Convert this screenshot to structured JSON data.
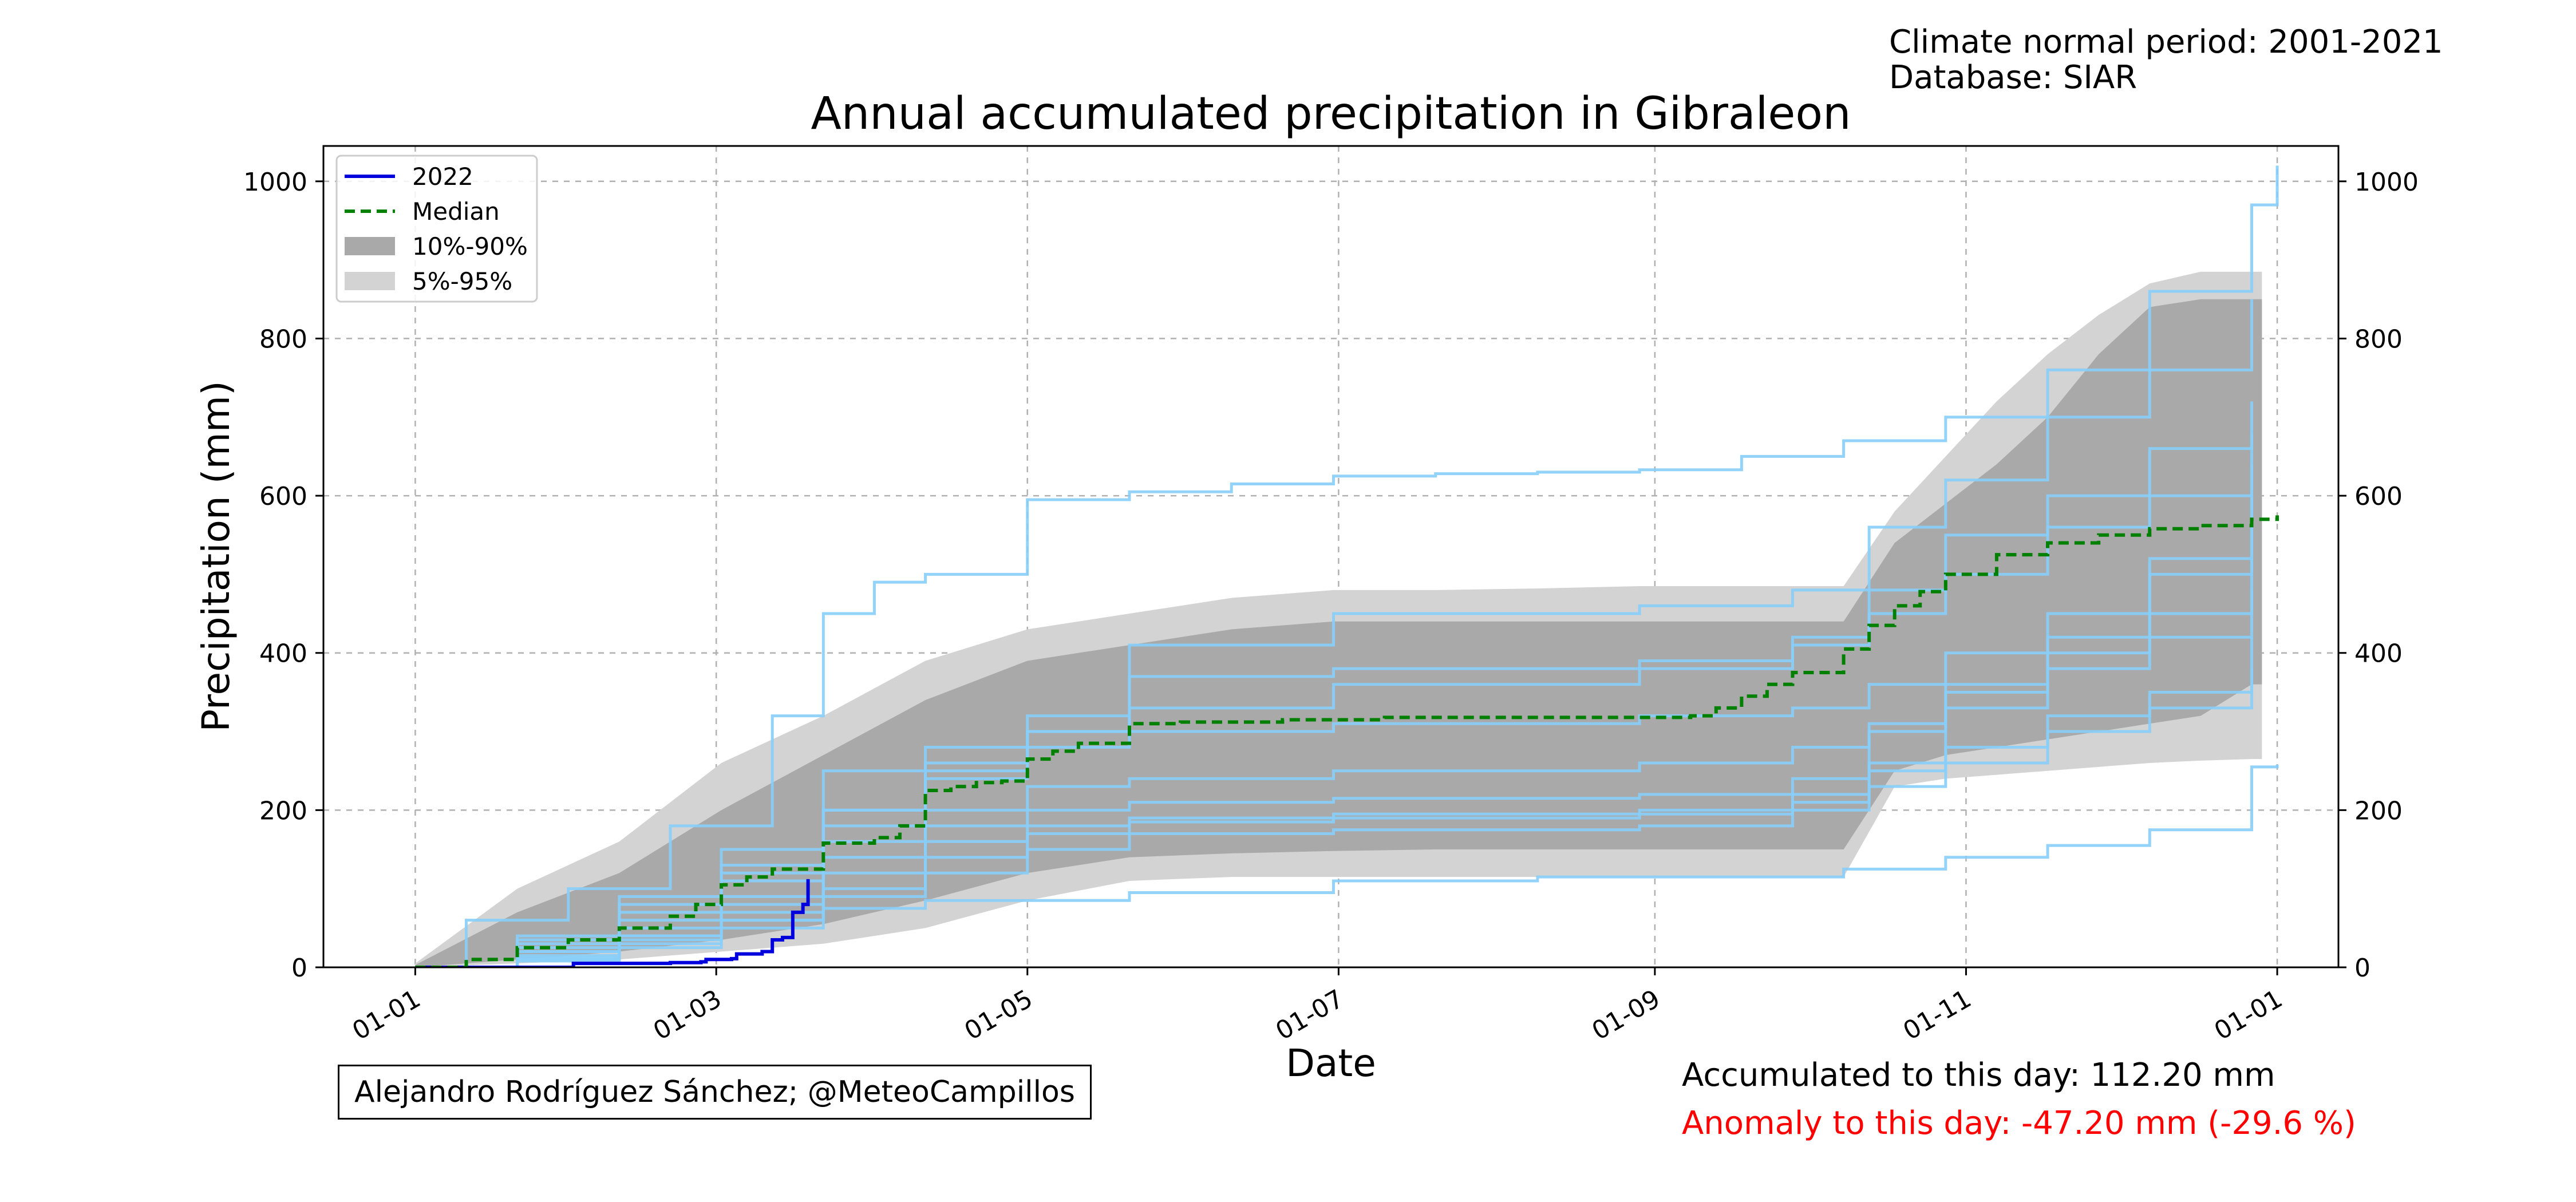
{
  "header": {
    "normal_period": "Climate normal period: 2001-2021",
    "database": "Database: SIAR"
  },
  "footer": {
    "credit": "Alejandro Rodríguez Sánchez; @MeteoCampillos",
    "accumulated": "Accumulated to this day: 112.20 mm",
    "anomaly": "Anomaly to this day: -47.20 mm (-29.6 %)"
  },
  "colors": {
    "current": "#0000dd",
    "median": "#008000",
    "band_10_90": "#a9a9a9",
    "band_5_95": "#d3d3d3",
    "historical": "#87cefa",
    "anomaly_text": "#ff0000"
  },
  "chart_data": {
    "type": "line",
    "title": "Annual accumulated precipitation in Gibraleon",
    "xlabel": "Date",
    "ylabel": "Precipitation (mm)",
    "x_ticks": [
      "01-01",
      "01-03",
      "01-05",
      "01-07",
      "01-09",
      "01-11",
      "01-01"
    ],
    "x_tick_days": [
      0,
      59,
      120,
      181,
      243,
      304,
      365
    ],
    "xlim": [
      -18,
      377
    ],
    "ylim": [
      0,
      1045
    ],
    "y_ticks": [
      0,
      200,
      400,
      600,
      800,
      1000
    ],
    "grid": true,
    "right_axis_ticks": true,
    "legend_position": "top-left",
    "legend": [
      "2022",
      "Median",
      "10%-90%",
      "5%-95%"
    ],
    "series": [
      {
        "name": "2022",
        "style": "solid",
        "x": [
          0,
          15,
          30,
          31,
          50,
          56,
          57,
          62,
          63,
          68,
          70,
          72,
          74,
          76,
          77
        ],
        "y": [
          0,
          0,
          0,
          5,
          6,
          7,
          10,
          11,
          17,
          20,
          35,
          38,
          70,
          80,
          112.2
        ]
      },
      {
        "name": "Median",
        "style": "dashed",
        "x": [
          0,
          10,
          20,
          30,
          40,
          50,
          55,
          60,
          65,
          70,
          80,
          90,
          95,
          100,
          105,
          110,
          115,
          120,
          125,
          130,
          140,
          150,
          160,
          170,
          180,
          190,
          200,
          210,
          220,
          230,
          240,
          245,
          250,
          255,
          260,
          265,
          270,
          280,
          285,
          290,
          295,
          300,
          310,
          320,
          330,
          340,
          350,
          360,
          365
        ],
        "y": [
          0,
          10,
          25,
          35,
          50,
          65,
          80,
          105,
          115,
          125,
          158,
          165,
          180,
          225,
          230,
          235,
          237,
          265,
          275,
          285,
          310,
          312,
          312,
          315,
          315,
          318,
          318,
          318,
          318,
          318,
          318,
          318,
          320,
          330,
          345,
          360,
          375,
          405,
          435,
          460,
          478,
          500,
          525,
          540,
          550,
          558,
          562,
          570,
          575
        ]
      }
    ],
    "bands": [
      {
        "name": "5%-95%",
        "x": [
          0,
          20,
          40,
          60,
          80,
          100,
          120,
          140,
          160,
          180,
          200,
          220,
          240,
          260,
          280,
          290,
          300,
          310,
          320,
          330,
          340,
          350,
          360,
          362
        ],
        "lower": [
          0,
          5,
          10,
          20,
          30,
          50,
          85,
          110,
          115,
          115,
          115,
          115,
          115,
          115,
          115,
          230,
          240,
          245,
          250,
          255,
          260,
          263,
          265,
          265
        ],
        "upper": [
          5,
          100,
          160,
          260,
          320,
          390,
          430,
          450,
          470,
          480,
          480,
          482,
          485,
          485,
          485,
          580,
          650,
          720,
          780,
          830,
          870,
          885,
          885,
          885
        ]
      },
      {
        "name": "10%-90%",
        "x": [
          0,
          20,
          40,
          60,
          80,
          100,
          120,
          140,
          160,
          180,
          200,
          220,
          240,
          260,
          280,
          290,
          300,
          310,
          320,
          330,
          340,
          350,
          360,
          362
        ],
        "lower": [
          0,
          10,
          20,
          35,
          55,
          85,
          120,
          140,
          145,
          148,
          150,
          150,
          150,
          150,
          150,
          250,
          270,
          280,
          290,
          300,
          310,
          320,
          360,
          360
        ],
        "upper": [
          3,
          70,
          120,
          200,
          270,
          340,
          390,
          410,
          430,
          440,
          440,
          440,
          440,
          440,
          440,
          540,
          590,
          640,
          700,
          780,
          840,
          850,
          850,
          850
        ]
      }
    ],
    "historical_years": [
      {
        "x": [
          0,
          10,
          30,
          50,
          70,
          80,
          90,
          100,
          120,
          140,
          160,
          180,
          200,
          220,
          240,
          260,
          280,
          300,
          320,
          340,
          360,
          365
        ],
        "y": [
          0,
          60,
          100,
          180,
          320,
          450,
          490,
          500,
          595,
          605,
          615,
          625,
          628,
          630,
          633,
          650,
          670,
          700,
          760,
          860,
          970,
          1020
        ]
      },
      {
        "x": [
          0,
          20,
          40,
          60,
          80,
          100,
          140,
          180,
          220,
          260,
          280,
          300,
          320,
          340,
          360,
          365
        ],
        "y": [
          0,
          20,
          40,
          60,
          75,
          85,
          95,
          110,
          115,
          115,
          125,
          140,
          155,
          175,
          255,
          258
        ]
      },
      {
        "x": [
          0,
          20,
          40,
          60,
          80,
          100,
          120,
          140,
          180,
          240,
          270,
          285,
          300,
          320,
          340,
          360
        ],
        "y": [
          0,
          40,
          80,
          150,
          250,
          280,
          300,
          410,
          450,
          460,
          480,
          560,
          620,
          700,
          760,
          850
        ]
      },
      {
        "x": [
          0,
          20,
          40,
          60,
          80,
          100,
          120,
          140,
          180,
          240,
          270,
          285,
          300,
          320,
          340,
          360
        ],
        "y": [
          0,
          30,
          60,
          120,
          200,
          240,
          300,
          330,
          360,
          380,
          410,
          450,
          500,
          560,
          600,
          680
        ]
      },
      {
        "x": [
          0,
          20,
          40,
          60,
          80,
          100,
          120,
          140,
          180,
          240,
          270,
          285,
          300,
          320,
          340,
          360
        ],
        "y": [
          0,
          20,
          50,
          90,
          160,
          200,
          230,
          240,
          250,
          260,
          280,
          310,
          360,
          400,
          450,
          520
        ]
      },
      {
        "x": [
          0,
          20,
          40,
          60,
          80,
          100,
          120,
          140,
          180,
          240,
          270,
          285,
          300,
          320,
          340,
          360
        ],
        "y": [
          0,
          15,
          40,
          80,
          120,
          160,
          180,
          190,
          195,
          200,
          220,
          250,
          280,
          320,
          350,
          420
        ]
      },
      {
        "x": [
          0,
          20,
          40,
          60,
          80,
          100,
          120,
          140,
          180,
          240,
          270,
          285,
          300,
          320,
          340,
          360
        ],
        "y": [
          0,
          10,
          30,
          60,
          90,
          120,
          150,
          170,
          175,
          180,
          200,
          230,
          260,
          300,
          330,
          380
        ]
      },
      {
        "x": [
          0,
          20,
          40,
          60,
          80,
          100,
          120,
          140,
          180,
          240,
          270,
          285,
          300,
          320,
          340,
          360
        ],
        "y": [
          0,
          25,
          70,
          110,
          180,
          260,
          320,
          370,
          380,
          390,
          420,
          480,
          550,
          600,
          660,
          720
        ]
      },
      {
        "x": [
          0,
          20,
          40,
          60,
          80,
          100,
          120,
          140,
          180,
          240,
          270,
          285,
          300,
          320,
          340,
          360
        ],
        "y": [
          0,
          12,
          35,
          70,
          140,
          180,
          200,
          210,
          215,
          220,
          240,
          300,
          350,
          420,
          500,
          600
        ]
      },
      {
        "x": [
          0,
          20,
          40,
          60,
          80,
          100,
          120,
          140,
          180,
          240,
          270,
          285,
          300,
          320,
          340,
          360
        ],
        "y": [
          0,
          35,
          90,
          130,
          200,
          250,
          280,
          300,
          310,
          320,
          330,
          360,
          400,
          450,
          520,
          640
        ]
      },
      {
        "x": [
          0,
          20,
          40,
          60,
          80,
          100,
          120,
          140,
          180,
          240,
          270,
          285,
          300,
          320,
          340,
          360
        ],
        "y": [
          0,
          8,
          25,
          50,
          100,
          140,
          170,
          185,
          190,
          195,
          210,
          260,
          330,
          380,
          420,
          480
        ]
      }
    ]
  }
}
